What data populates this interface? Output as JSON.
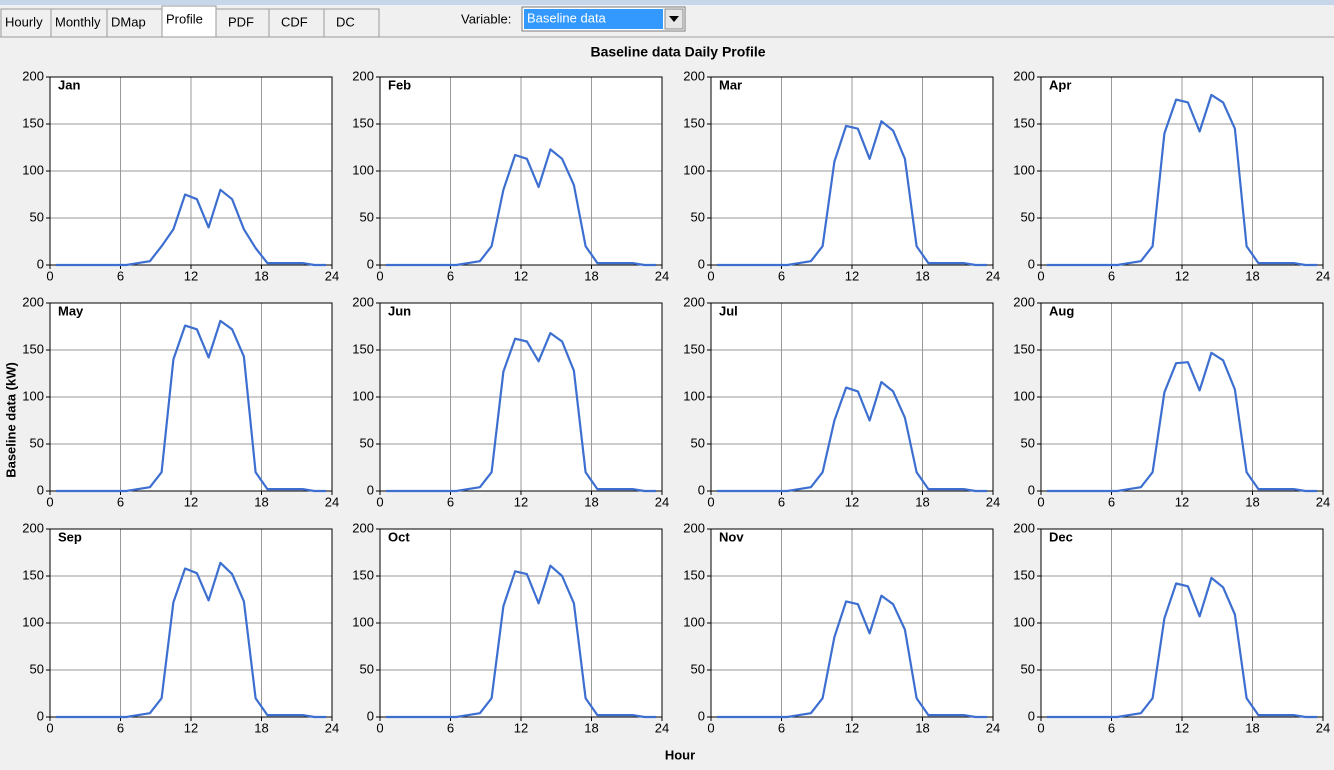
{
  "tabs": [
    "Hourly",
    "Monthly",
    "DMap",
    "Profile",
    "PDF",
    "CDF",
    "DC"
  ],
  "selected_tab": 3,
  "variable_label": "Variable:",
  "variable_value": "Baseline data",
  "figure": {
    "title": "Baseline data Daily Profile",
    "ylabel": "Baseline data (kW)",
    "xlabel": "Hour"
  },
  "chart_data": [
    {
      "type": "line",
      "title": "Jan",
      "color": "#3d6fd1",
      "grid": true,
      "xlim": [
        0,
        24
      ],
      "ylim": [
        0,
        200
      ],
      "xticks": [
        0,
        6,
        12,
        18,
        24
      ],
      "yticks": [
        0,
        50,
        100,
        150,
        200
      ],
      "x": [
        0.5,
        1.5,
        2.5,
        3.5,
        4.5,
        5.5,
        6.5,
        7.5,
        8.5,
        9.5,
        10.5,
        11.5,
        12.5,
        13.5,
        14.5,
        15.5,
        16.5,
        17.5,
        18.5,
        19.5,
        20.5,
        21.5,
        22.5,
        23.5
      ],
      "values": [
        0,
        0,
        0,
        0,
        0,
        0,
        0,
        2,
        4,
        20,
        38,
        75,
        70,
        40,
        80,
        70,
        38,
        18,
        2,
        2,
        2,
        2,
        0,
        0
      ]
    },
    {
      "type": "line",
      "title": "Feb",
      "color": "#3d6fd1",
      "grid": true,
      "xlim": [
        0,
        24
      ],
      "ylim": [
        0,
        200
      ],
      "xticks": [
        0,
        6,
        12,
        18,
        24
      ],
      "yticks": [
        0,
        50,
        100,
        150,
        200
      ],
      "x": [
        0.5,
        1.5,
        2.5,
        3.5,
        4.5,
        5.5,
        6.5,
        7.5,
        8.5,
        9.5,
        10.5,
        11.5,
        12.5,
        13.5,
        14.5,
        15.5,
        16.5,
        17.5,
        18.5,
        19.5,
        20.5,
        21.5,
        22.5,
        23.5
      ],
      "values": [
        0,
        0,
        0,
        0,
        0,
        0,
        0,
        2,
        4,
        20,
        80,
        117,
        113,
        83,
        123,
        113,
        85,
        20,
        2,
        2,
        2,
        2,
        0,
        0
      ]
    },
    {
      "type": "line",
      "title": "Mar",
      "color": "#3d6fd1",
      "grid": true,
      "xlim": [
        0,
        24
      ],
      "ylim": [
        0,
        200
      ],
      "xticks": [
        0,
        6,
        12,
        18,
        24
      ],
      "yticks": [
        0,
        50,
        100,
        150,
        200
      ],
      "x": [
        0.5,
        1.5,
        2.5,
        3.5,
        4.5,
        5.5,
        6.5,
        7.5,
        8.5,
        9.5,
        10.5,
        11.5,
        12.5,
        13.5,
        14.5,
        15.5,
        16.5,
        17.5,
        18.5,
        19.5,
        20.5,
        21.5,
        22.5,
        23.5
      ],
      "values": [
        0,
        0,
        0,
        0,
        0,
        0,
        0,
        2,
        4,
        20,
        110,
        148,
        145,
        113,
        153,
        143,
        113,
        20,
        2,
        2,
        2,
        2,
        0,
        0
      ]
    },
    {
      "type": "line",
      "title": "Apr",
      "color": "#3d6fd1",
      "grid": true,
      "xlim": [
        0,
        24
      ],
      "ylim": [
        0,
        200
      ],
      "xticks": [
        0,
        6,
        12,
        18,
        24
      ],
      "yticks": [
        0,
        50,
        100,
        150,
        200
      ],
      "x": [
        0.5,
        1.5,
        2.5,
        3.5,
        4.5,
        5.5,
        6.5,
        7.5,
        8.5,
        9.5,
        10.5,
        11.5,
        12.5,
        13.5,
        14.5,
        15.5,
        16.5,
        17.5,
        18.5,
        19.5,
        20.5,
        21.5,
        22.5,
        23.5
      ],
      "values": [
        0,
        0,
        0,
        0,
        0,
        0,
        0,
        2,
        4,
        20,
        140,
        176,
        173,
        142,
        181,
        173,
        145,
        20,
        2,
        2,
        2,
        2,
        0,
        0
      ]
    },
    {
      "type": "line",
      "title": "May",
      "color": "#3d6fd1",
      "grid": true,
      "xlim": [
        0,
        24
      ],
      "ylim": [
        0,
        200
      ],
      "xticks": [
        0,
        6,
        12,
        18,
        24
      ],
      "yticks": [
        0,
        50,
        100,
        150,
        200
      ],
      "x": [
        0.5,
        1.5,
        2.5,
        3.5,
        4.5,
        5.5,
        6.5,
        7.5,
        8.5,
        9.5,
        10.5,
        11.5,
        12.5,
        13.5,
        14.5,
        15.5,
        16.5,
        17.5,
        18.5,
        19.5,
        20.5,
        21.5,
        22.5,
        23.5
      ],
      "values": [
        0,
        0,
        0,
        0,
        0,
        0,
        0,
        2,
        4,
        20,
        140,
        176,
        172,
        142,
        181,
        172,
        143,
        20,
        2,
        2,
        2,
        2,
        0,
        0
      ]
    },
    {
      "type": "line",
      "title": "Jun",
      "color": "#3d6fd1",
      "grid": true,
      "xlim": [
        0,
        24
      ],
      "ylim": [
        0,
        200
      ],
      "xticks": [
        0,
        6,
        12,
        18,
        24
      ],
      "yticks": [
        0,
        50,
        100,
        150,
        200
      ],
      "x": [
        0.5,
        1.5,
        2.5,
        3.5,
        4.5,
        5.5,
        6.5,
        7.5,
        8.5,
        9.5,
        10.5,
        11.5,
        12.5,
        13.5,
        14.5,
        15.5,
        16.5,
        17.5,
        18.5,
        19.5,
        20.5,
        21.5,
        22.5,
        23.5
      ],
      "values": [
        0,
        0,
        0,
        0,
        0,
        0,
        0,
        2,
        4,
        20,
        127,
        162,
        159,
        138,
        168,
        159,
        128,
        20,
        2,
        2,
        2,
        2,
        0,
        0
      ]
    },
    {
      "type": "line",
      "title": "Jul",
      "color": "#3d6fd1",
      "grid": true,
      "xlim": [
        0,
        24
      ],
      "ylim": [
        0,
        200
      ],
      "xticks": [
        0,
        6,
        12,
        18,
        24
      ],
      "yticks": [
        0,
        50,
        100,
        150,
        200
      ],
      "x": [
        0.5,
        1.5,
        2.5,
        3.5,
        4.5,
        5.5,
        6.5,
        7.5,
        8.5,
        9.5,
        10.5,
        11.5,
        12.5,
        13.5,
        14.5,
        15.5,
        16.5,
        17.5,
        18.5,
        19.5,
        20.5,
        21.5,
        22.5,
        23.5
      ],
      "values": [
        0,
        0,
        0,
        0,
        0,
        0,
        0,
        2,
        4,
        20,
        75,
        110,
        106,
        75,
        116,
        106,
        78,
        20,
        2,
        2,
        2,
        2,
        0,
        0
      ]
    },
    {
      "type": "line",
      "title": "Aug",
      "color": "#3d6fd1",
      "grid": true,
      "xlim": [
        0,
        24
      ],
      "ylim": [
        0,
        200
      ],
      "xticks": [
        0,
        6,
        12,
        18,
        24
      ],
      "yticks": [
        0,
        50,
        100,
        150,
        200
      ],
      "x": [
        0.5,
        1.5,
        2.5,
        3.5,
        4.5,
        5.5,
        6.5,
        7.5,
        8.5,
        9.5,
        10.5,
        11.5,
        12.5,
        13.5,
        14.5,
        15.5,
        16.5,
        17.5,
        18.5,
        19.5,
        20.5,
        21.5,
        22.5,
        23.5
      ],
      "values": [
        0,
        0,
        0,
        0,
        0,
        0,
        0,
        2,
        4,
        20,
        105,
        136,
        137,
        107,
        147,
        139,
        108,
        20,
        2,
        2,
        2,
        2,
        0,
        0
      ]
    },
    {
      "type": "line",
      "title": "Sep",
      "color": "#3d6fd1",
      "grid": true,
      "xlim": [
        0,
        24
      ],
      "ylim": [
        0,
        200
      ],
      "xticks": [
        0,
        6,
        12,
        18,
        24
      ],
      "yticks": [
        0,
        50,
        100,
        150,
        200
      ],
      "x": [
        0.5,
        1.5,
        2.5,
        3.5,
        4.5,
        5.5,
        6.5,
        7.5,
        8.5,
        9.5,
        10.5,
        11.5,
        12.5,
        13.5,
        14.5,
        15.5,
        16.5,
        17.5,
        18.5,
        19.5,
        20.5,
        21.5,
        22.5,
        23.5
      ],
      "values": [
        0,
        0,
        0,
        0,
        0,
        0,
        0,
        2,
        4,
        20,
        122,
        158,
        153,
        124,
        164,
        152,
        123,
        20,
        2,
        2,
        2,
        2,
        0,
        0
      ]
    },
    {
      "type": "line",
      "title": "Oct",
      "color": "#3d6fd1",
      "grid": true,
      "xlim": [
        0,
        24
      ],
      "ylim": [
        0,
        200
      ],
      "xticks": [
        0,
        6,
        12,
        18,
        24
      ],
      "yticks": [
        0,
        50,
        100,
        150,
        200
      ],
      "x": [
        0.5,
        1.5,
        2.5,
        3.5,
        4.5,
        5.5,
        6.5,
        7.5,
        8.5,
        9.5,
        10.5,
        11.5,
        12.5,
        13.5,
        14.5,
        15.5,
        16.5,
        17.5,
        18.5,
        19.5,
        20.5,
        21.5,
        22.5,
        23.5
      ],
      "values": [
        0,
        0,
        0,
        0,
        0,
        0,
        0,
        2,
        4,
        20,
        118,
        155,
        152,
        121,
        161,
        150,
        121,
        20,
        2,
        2,
        2,
        2,
        0,
        0
      ]
    },
    {
      "type": "line",
      "title": "Nov",
      "color": "#3d6fd1",
      "grid": true,
      "xlim": [
        0,
        24
      ],
      "ylim": [
        0,
        200
      ],
      "xticks": [
        0,
        6,
        12,
        18,
        24
      ],
      "yticks": [
        0,
        50,
        100,
        150,
        200
      ],
      "x": [
        0.5,
        1.5,
        2.5,
        3.5,
        4.5,
        5.5,
        6.5,
        7.5,
        8.5,
        9.5,
        10.5,
        11.5,
        12.5,
        13.5,
        14.5,
        15.5,
        16.5,
        17.5,
        18.5,
        19.5,
        20.5,
        21.5,
        22.5,
        23.5
      ],
      "values": [
        0,
        0,
        0,
        0,
        0,
        0,
        0,
        2,
        4,
        20,
        85,
        123,
        120,
        89,
        129,
        120,
        93,
        20,
        2,
        2,
        2,
        2,
        0,
        0
      ]
    },
    {
      "type": "line",
      "title": "Dec",
      "color": "#3d6fd1",
      "grid": true,
      "xlim": [
        0,
        24
      ],
      "ylim": [
        0,
        200
      ],
      "xticks": [
        0,
        6,
        12,
        18,
        24
      ],
      "yticks": [
        0,
        50,
        100,
        150,
        200
      ],
      "x": [
        0.5,
        1.5,
        2.5,
        3.5,
        4.5,
        5.5,
        6.5,
        7.5,
        8.5,
        9.5,
        10.5,
        11.5,
        12.5,
        13.5,
        14.5,
        15.5,
        16.5,
        17.5,
        18.5,
        19.5,
        20.5,
        21.5,
        22.5,
        23.5
      ],
      "values": [
        0,
        0,
        0,
        0,
        0,
        0,
        0,
        2,
        4,
        20,
        105,
        142,
        139,
        107,
        148,
        138,
        109,
        20,
        2,
        2,
        2,
        2,
        0,
        0
      ]
    }
  ]
}
